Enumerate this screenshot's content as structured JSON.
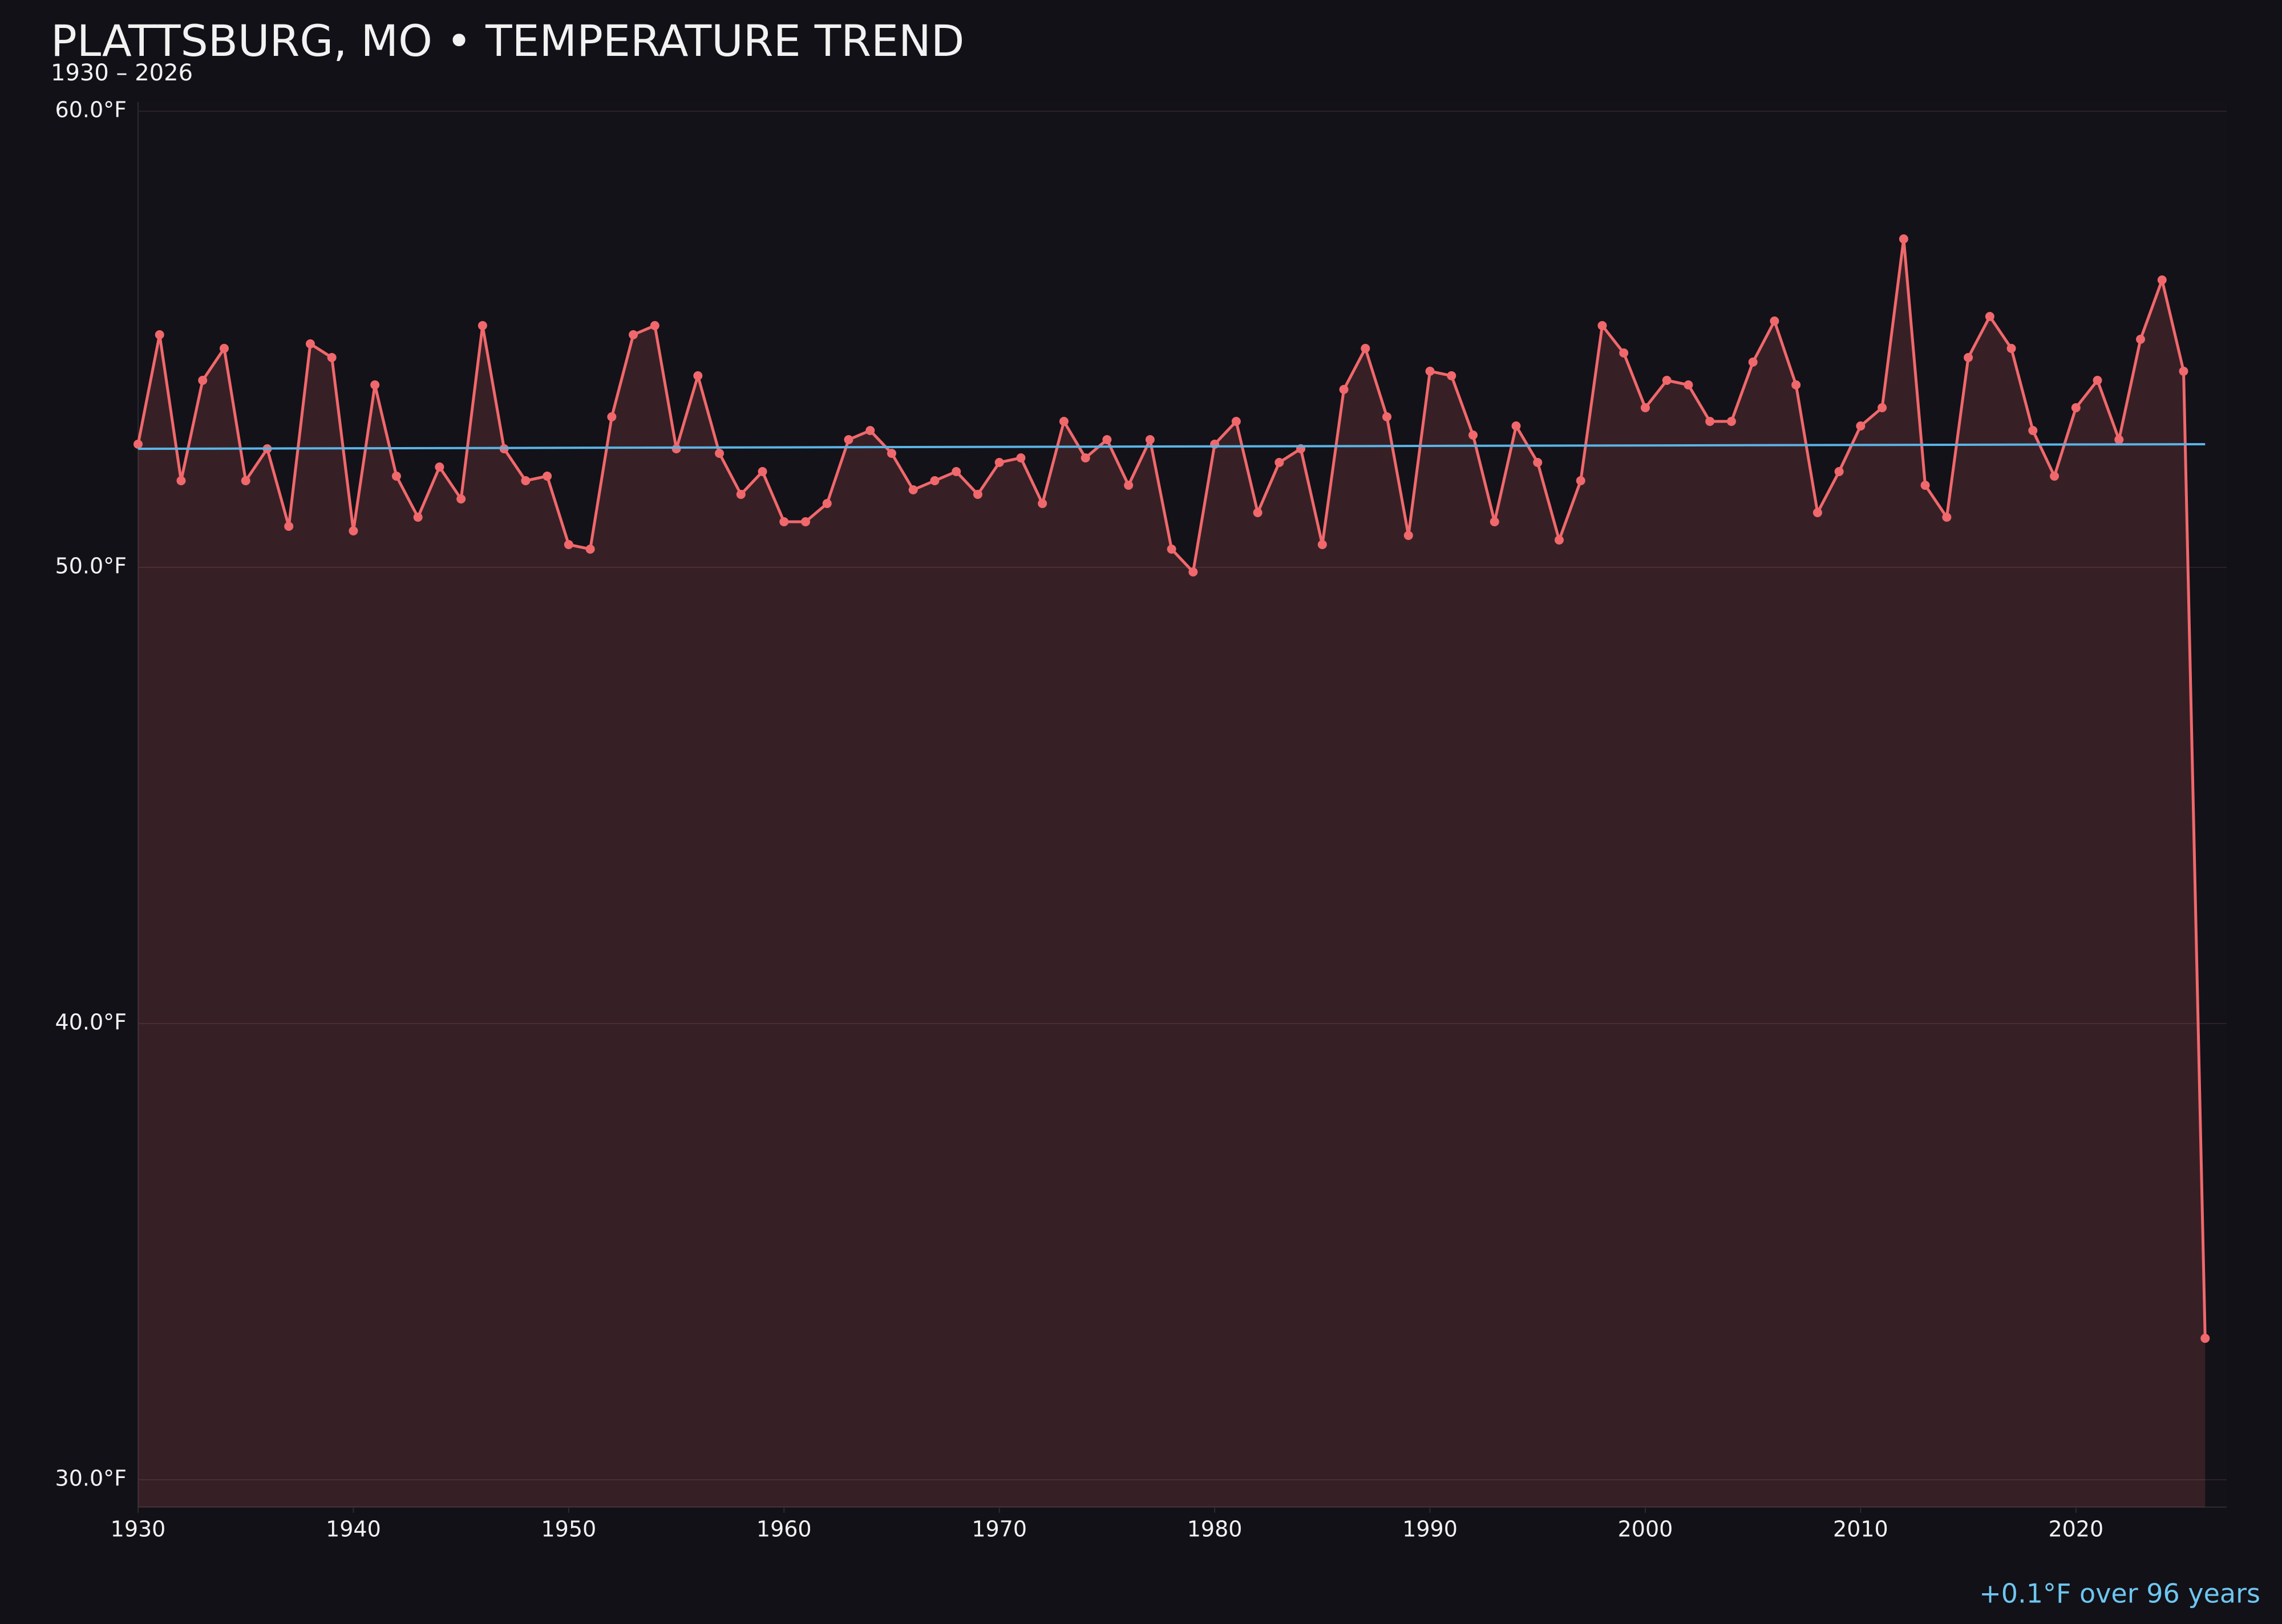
{
  "chart_data": {
    "type": "line",
    "title": "PLATTSBURG, MO • TEMPERATURE TREND",
    "subtitle": "1930 – 2026",
    "annotation": "+0.1°F over 96 years",
    "x": [
      1930,
      1931,
      1932,
      1933,
      1934,
      1935,
      1936,
      1937,
      1938,
      1939,
      1940,
      1941,
      1942,
      1943,
      1944,
      1945,
      1946,
      1947,
      1948,
      1949,
      1950,
      1951,
      1952,
      1953,
      1954,
      1955,
      1956,
      1957,
      1958,
      1959,
      1960,
      1961,
      1962,
      1963,
      1964,
      1965,
      1966,
      1967,
      1968,
      1969,
      1970,
      1971,
      1972,
      1973,
      1974,
      1975,
      1976,
      1977,
      1978,
      1979,
      1980,
      1981,
      1982,
      1983,
      1984,
      1985,
      1986,
      1987,
      1988,
      1989,
      1990,
      1991,
      1992,
      1993,
      1994,
      1995,
      1996,
      1997,
      1998,
      1999,
      2000,
      2001,
      2002,
      2003,
      2004,
      2005,
      2006,
      2007,
      2008,
      2009,
      2010,
      2011,
      2012,
      2013,
      2014,
      2015,
      2016,
      2017,
      2018,
      2019,
      2020,
      2021,
      2022,
      2023,
      2024,
      2025,
      2026
    ],
    "series": [
      {
        "color": "#f0686c",
        "values": [
          52.7,
          55.1,
          51.9,
          54.1,
          54.8,
          51.9,
          52.6,
          50.9,
          54.9,
          54.6,
          50.8,
          54.0,
          52.0,
          51.1,
          52.2,
          51.5,
          55.3,
          52.6,
          51.9,
          52.0,
          50.5,
          50.4,
          53.3,
          55.1,
          55.3,
          52.6,
          54.2,
          52.5,
          51.6,
          52.1,
          51.0,
          51.0,
          51.4,
          52.8,
          53.0,
          52.5,
          51.7,
          51.9,
          52.1,
          51.6,
          52.3,
          52.4,
          51.4,
          53.2,
          52.4,
          52.8,
          51.8,
          52.8,
          50.4,
          49.9,
          52.7,
          53.2,
          51.2,
          52.3,
          52.6,
          50.5,
          53.9,
          54.8,
          53.3,
          50.7,
          54.3,
          54.2,
          52.9,
          51.0,
          53.1,
          52.3,
          50.6,
          51.9,
          55.3,
          54.7,
          53.5,
          54.1,
          54.0,
          53.2,
          53.2,
          54.5,
          55.4,
          54.0,
          51.2,
          52.1,
          53.1,
          53.5,
          57.2,
          51.8,
          51.1,
          54.6,
          55.5,
          54.8,
          53.0,
          52.0,
          53.5,
          54.1,
          52.8,
          55.0,
          56.3,
          54.3,
          33.1
        ]
      }
    ],
    "trend": {
      "color": "#5ab4e6",
      "x": [
        1930,
        2026
      ],
      "values": [
        52.6,
        52.7
      ]
    },
    "xlim": [
      1930,
      2027
    ],
    "ylim": [
      29.4,
      60.2
    ],
    "xticks": [
      1930,
      1940,
      1950,
      1960,
      1970,
      1980,
      1990,
      2000,
      2010,
      2020
    ],
    "yticks": [
      {
        "value": 30,
        "label": "30.0°F"
      },
      {
        "value": 40,
        "label": "40.0°F"
      },
      {
        "value": 50,
        "label": "50.0°F"
      },
      {
        "value": 60,
        "label": "60.0°F"
      }
    ],
    "grid": true
  }
}
